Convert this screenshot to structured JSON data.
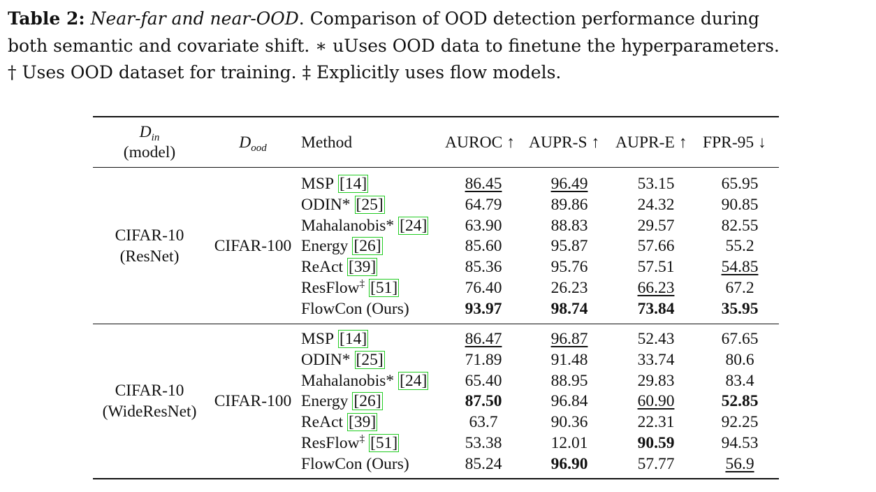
{
  "caption": {
    "label": "Table 2:",
    "title": "Near-far and near-OOD",
    "line1_rest": ". Comparison of OOD detection performance during",
    "line2": "both semantic and covariate shift. ∗ uUses OOD data to finetune the hyperparameters.",
    "line3": "† Uses OOD dataset for training. ‡ Explicitly uses flow models."
  },
  "header": {
    "din_main": "D",
    "din_sub": "in",
    "din_model": "(model)",
    "dood_main": "D",
    "dood_sub": "ood",
    "method": "Method",
    "auroc": "AUROC ↑",
    "aupr_s": "AUPR-S ↑",
    "aupr_e": "AUPR-E ↑",
    "fpr95": "FPR-95 ↓"
  },
  "groups": [
    {
      "din_line1": "CIFAR-10",
      "din_line2": "(ResNet)",
      "dood": "CIFAR-100",
      "rows": [
        {
          "name": "MSP",
          "sup": "",
          "cite": "14",
          "auroc": "86.45",
          "aupr_s": "96.49",
          "aupr_e": "53.15",
          "fpr95": "65.95"
        },
        {
          "name": "ODIN*",
          "sup": "",
          "cite": "25",
          "auroc": "64.79",
          "aupr_s": "89.86",
          "aupr_e": "24.32",
          "fpr95": "90.85"
        },
        {
          "name": "Mahalanobis*",
          "sup": "",
          "cite": "24",
          "auroc": "63.90",
          "aupr_s": "88.83",
          "aupr_e": "29.57",
          "fpr95": "82.55"
        },
        {
          "name": "Energy",
          "sup": "",
          "cite": "26",
          "auroc": "85.60",
          "aupr_s": "95.87",
          "aupr_e": "57.66",
          "fpr95": "55.2"
        },
        {
          "name": "ReAct",
          "sup": "",
          "cite": "39",
          "auroc": "85.36",
          "aupr_s": "95.76",
          "aupr_e": "57.51",
          "fpr95": "54.85"
        },
        {
          "name": "ResFlow",
          "sup": "‡",
          "cite": "51",
          "auroc": "76.40",
          "aupr_s": "26.23",
          "aupr_e": "66.23",
          "fpr95": "67.2"
        },
        {
          "name": "FlowCon (Ours)",
          "sup": "",
          "cite": "",
          "auroc": "93.97",
          "aupr_s": "98.74",
          "aupr_e": "73.84",
          "fpr95": "35.95"
        }
      ]
    },
    {
      "din_line1": "CIFAR-10",
      "din_line2": "(WideResNet)",
      "dood": "CIFAR-100",
      "rows": [
        {
          "name": "MSP",
          "sup": "",
          "cite": "14",
          "auroc": "86.47",
          "aupr_s": "96.87",
          "aupr_e": "52.43",
          "fpr95": "67.65"
        },
        {
          "name": "ODIN*",
          "sup": "",
          "cite": "25",
          "auroc": "71.89",
          "aupr_s": "91.48",
          "aupr_e": "33.74",
          "fpr95": "80.6"
        },
        {
          "name": "Mahalanobis*",
          "sup": "",
          "cite": "24",
          "auroc": "65.40",
          "aupr_s": "88.95",
          "aupr_e": "29.83",
          "fpr95": "83.4"
        },
        {
          "name": "Energy",
          "sup": "",
          "cite": "26",
          "auroc": "87.50",
          "aupr_s": "96.84",
          "aupr_e": "60.90",
          "fpr95": "52.85"
        },
        {
          "name": "ReAct",
          "sup": "",
          "cite": "39",
          "auroc": "63.7",
          "aupr_s": "90.36",
          "aupr_e": "22.31",
          "fpr95": "92.25"
        },
        {
          "name": "ResFlow",
          "sup": "‡",
          "cite": "51",
          "auroc": "53.38",
          "aupr_s": "12.01",
          "aupr_e": "90.59",
          "fpr95": "94.53"
        },
        {
          "name": "FlowCon (Ours)",
          "sup": "",
          "cite": "",
          "auroc": "85.24",
          "aupr_s": "96.90",
          "aupr_e": "57.77",
          "fpr95": "56.9"
        }
      ]
    }
  ],
  "emphasis": {
    "bold": [
      "0.6.auroc",
      "0.6.aupr_s",
      "0.6.aupr_e",
      "0.6.fpr95",
      "1.3.auroc",
      "1.3.fpr95",
      "1.5.aupr_e",
      "1.6.aupr_s"
    ],
    "underline": [
      "0.0.auroc",
      "0.0.aupr_s",
      "0.4.fpr95",
      "0.5.aupr_e",
      "1.0.auroc",
      "1.0.aupr_s",
      "1.3.aupr_e",
      "1.6.fpr95"
    ]
  },
  "colors": {
    "citation_border": "#22cc22",
    "text": "#111111"
  }
}
